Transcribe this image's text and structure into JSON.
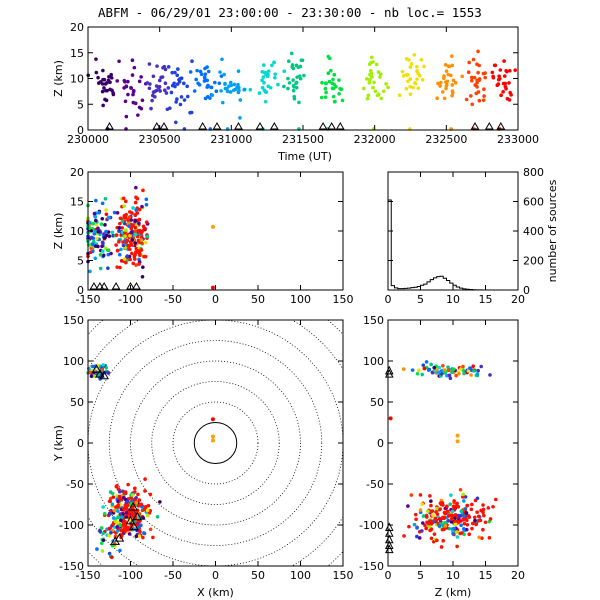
{
  "title": "ABFM - 06/29/01 23:00:00 - 23:30:00 - nb loc.=   1553",
  "chart_data": [
    {
      "id": "time-height",
      "type": "scatter",
      "xlabel": "Time (UT)",
      "ylabel": "Z (km)",
      "xlim": [
        230000,
        233000
      ],
      "ylim": [
        0,
        20
      ],
      "xticks": [
        "230000",
        "230500",
        "231000",
        "231500",
        "232000",
        "232500",
        "233000"
      ],
      "yticks": [
        "0",
        "5",
        "10",
        "15",
        "20"
      ],
      "clusters": [
        {
          "x": 230120,
          "z": 8.5,
          "color": "#3a006a"
        },
        {
          "x": 230300,
          "z": 8.0,
          "color": "#5a0090"
        },
        {
          "x": 230480,
          "z": 8.5,
          "color": "#4a30c0"
        },
        {
          "x": 230650,
          "z": 8.5,
          "color": "#2040e0"
        },
        {
          "x": 230820,
          "z": 9.0,
          "color": "#0070ff"
        },
        {
          "x": 231000,
          "z": 9.0,
          "color": "#00a0f0"
        },
        {
          "x": 231250,
          "z": 10.0,
          "color": "#00d8d0"
        },
        {
          "x": 231450,
          "z": 10.0,
          "color": "#00c880"
        },
        {
          "x": 231700,
          "z": 9.0,
          "color": "#00e040"
        },
        {
          "x": 232000,
          "z": 9.0,
          "color": "#a0f000"
        },
        {
          "x": 232250,
          "z": 10.0,
          "color": "#f0e000"
        },
        {
          "x": 232500,
          "z": 9.5,
          "color": "#ff9000"
        },
        {
          "x": 232700,
          "z": 9.5,
          "color": "#ff4000"
        },
        {
          "x": 232900,
          "z": 9.5,
          "color": "#ff0000"
        }
      ]
    },
    {
      "id": "x-z",
      "type": "scatter",
      "xlabel": "",
      "ylabel": "Z (km)",
      "xlim": [
        -150,
        150
      ],
      "ylim": [
        0,
        20
      ],
      "xticks": [
        "-150",
        "-100",
        "-50",
        "0",
        "50",
        "100",
        "150"
      ],
      "yticks": [
        "0",
        "5",
        "10",
        "15",
        "20"
      ]
    },
    {
      "id": "altitude-histogram",
      "type": "bar",
      "xlabel": "",
      "ylabel": "number of sources",
      "xlim": [
        0,
        20
      ],
      "ylim": [
        0,
        800
      ],
      "xticks": [
        "0",
        "5",
        "10",
        "15",
        "20"
      ],
      "yticks": [
        "0",
        "200",
        "400",
        "600",
        "800"
      ],
      "bin_width_km": 0.5,
      "values": [
        610,
        30,
        14,
        9,
        9,
        11,
        13,
        16,
        19,
        24,
        32,
        40,
        55,
        70,
        82,
        91,
        93,
        80,
        64,
        47,
        32,
        20,
        13,
        8,
        5,
        3,
        2,
        1,
        1,
        0,
        0,
        0,
        0,
        0,
        0,
        0,
        0,
        0,
        0,
        0
      ]
    },
    {
      "id": "x-y",
      "type": "scatter",
      "xlabel": "X (km)",
      "ylabel": "Y (km)",
      "xlim": [
        -150,
        150
      ],
      "ylim": [
        -150,
        150
      ],
      "xticks": [
        "-150",
        "-100",
        "-50",
        "0",
        "50",
        "100",
        "150"
      ],
      "yticks": [
        "-150",
        "-100",
        "-50",
        "0",
        "50",
        "100",
        "150"
      ],
      "range_rings_km": [
        25,
        50,
        75,
        100,
        125,
        150,
        175,
        200
      ]
    },
    {
      "id": "z-y",
      "type": "scatter",
      "xlabel": "Z (km)",
      "ylabel": "",
      "xlim": [
        0,
        20
      ],
      "ylim": [
        -150,
        150
      ],
      "xticks": [
        "0",
        "5",
        "10",
        "15",
        "20"
      ],
      "yticks": [
        "-150",
        "-100",
        "-50",
        "0",
        "50",
        "100",
        "150"
      ]
    }
  ],
  "colors": {
    "axis": "#000000",
    "background": "#ffffff",
    "palette": [
      "#3a006a",
      "#5a0090",
      "#4a30c0",
      "#2040e0",
      "#0070ff",
      "#00a0f0",
      "#00d8d0",
      "#00c880",
      "#00e040",
      "#a0f000",
      "#f0e000",
      "#ff9000",
      "#ff4000",
      "#ff0000"
    ]
  }
}
